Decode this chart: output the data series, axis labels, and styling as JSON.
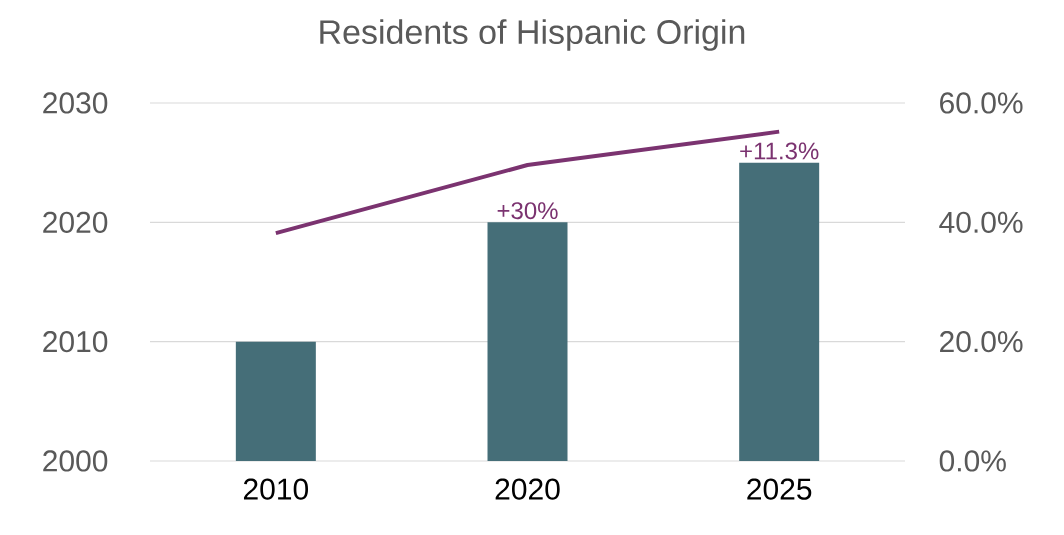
{
  "chart_data": {
    "type": "bar",
    "title": "Residents of Hispanic Origin",
    "categories": [
      "2010",
      "2020",
      "2025"
    ],
    "series": [
      {
        "color": "#456e78",
        "values": [
          2010,
          2020,
          2025
        ]
      },
      {
        "type": "line",
        "axis": "y2",
        "color": "#7b3370",
        "values": [
          38.2,
          49.6,
          55.2
        ]
      }
    ],
    "ylim": [
      2000,
      2030
    ],
    "yticks": [
      2000,
      2010,
      2020,
      2030
    ],
    "y2lim": [
      0,
      60
    ],
    "y2ticks": [
      {
        "value": 0,
        "label": "0.0%"
      },
      {
        "value": 20,
        "label": "20.0%"
      },
      {
        "value": 40,
        "label": "40.0%"
      },
      {
        "value": 60,
        "label": "60.0%"
      }
    ],
    "grid": "y",
    "marker": "none",
    "annotations": [
      {
        "text": "+30%",
        "x": "2020",
        "y": 2020
      },
      {
        "text": "+11.3%",
        "x": "2025",
        "y": 2025
      }
    ]
  }
}
